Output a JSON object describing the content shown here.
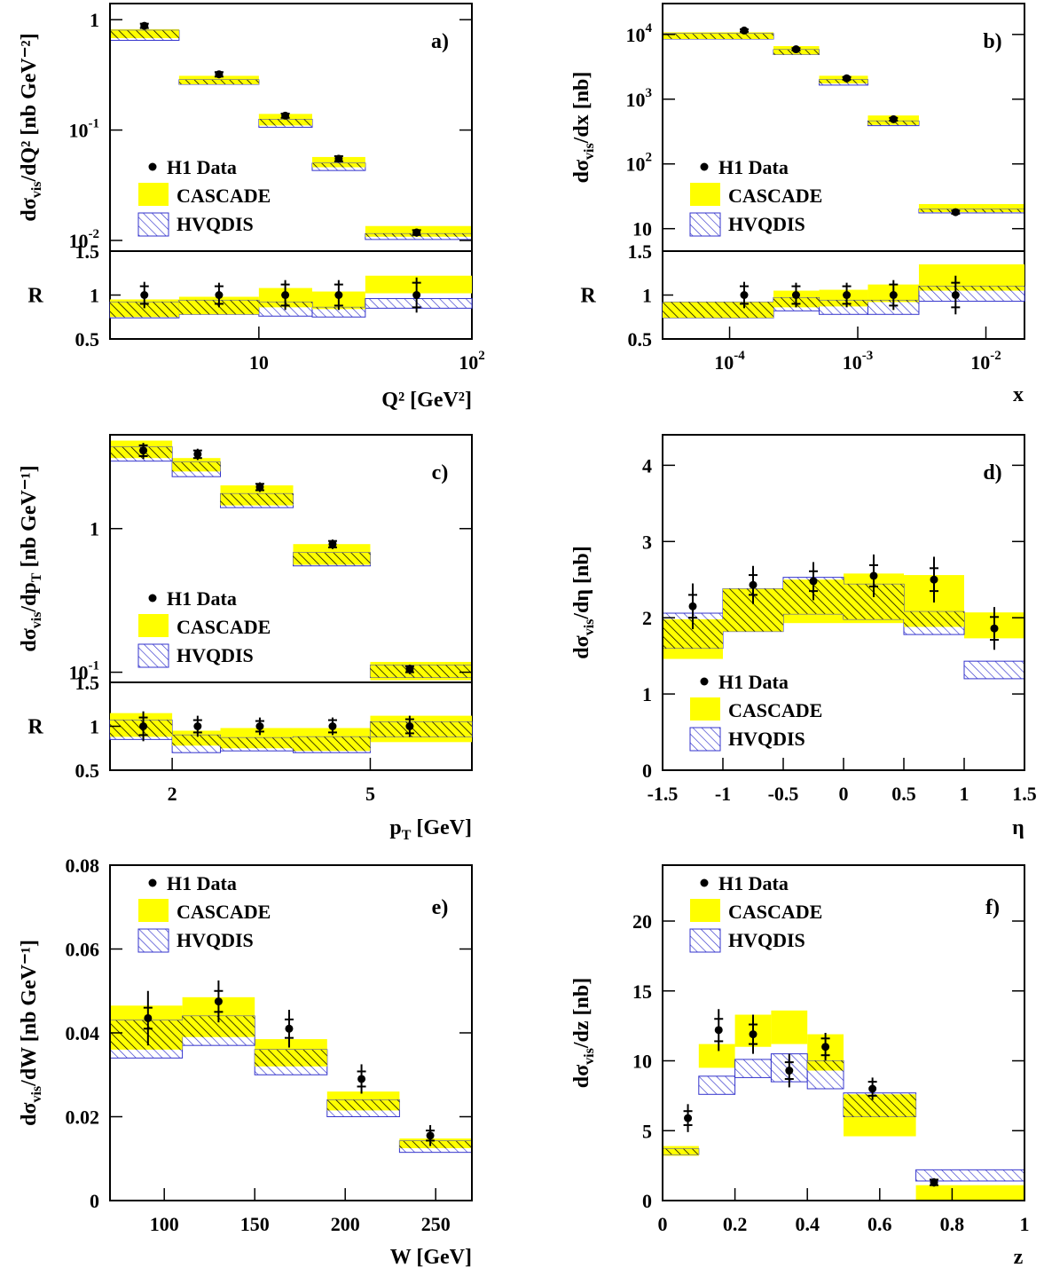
{
  "colors": {
    "cascade": "#ffff00",
    "hvqdis": "#3333cc",
    "data": "#000000"
  },
  "legend_labels": {
    "data": "H1 Data",
    "cascade": "CASCADE",
    "hvqdis": "HVQDIS"
  },
  "chart_data": [
    {
      "id": "a",
      "panel_label": "a)",
      "type": "bar",
      "xscale": "log",
      "yscale": "log",
      "xlim": [
        2,
        100
      ],
      "ylim": [
        0.008,
        1.4
      ],
      "ratio_ylim": [
        0.5,
        1.5
      ],
      "ylabel_main": "dσ",
      "ylabel_sub": "vis",
      "ylabel_rest": "/dQ² [nb GeV⁻²]",
      "xlabel": "Q² [GeV²]",
      "xticks": [
        {
          "v": 10,
          "m": "10"
        },
        {
          "v": 100,
          "m": "10",
          "e": "2"
        }
      ],
      "yticks": [
        {
          "v": 1,
          "m": "1"
        },
        {
          "v": 0.1,
          "m": "10",
          "e": "-1"
        },
        {
          "v": 0.01,
          "m": "10",
          "e": "-2"
        }
      ],
      "ratio_yticks": [
        "1.5",
        "1",
        "0.5"
      ],
      "legend_pos": "lower-left",
      "bins": [
        [
          2,
          4.22
        ],
        [
          4.22,
          10
        ],
        [
          10,
          17.8
        ],
        [
          17.8,
          31.6
        ],
        [
          31.6,
          100
        ]
      ],
      "data": [
        {
          "x": 2.9,
          "y": 0.88,
          "stat": 0.04,
          "tot": 0.07
        },
        {
          "x": 6.5,
          "y": 0.32,
          "stat": 0.015,
          "tot": 0.025
        },
        {
          "x": 13.3,
          "y": 0.135,
          "stat": 0.006,
          "tot": 0.01
        },
        {
          "x": 23.7,
          "y": 0.055,
          "stat": 0.003,
          "tot": 0.004
        },
        {
          "x": 55,
          "y": 0.0118,
          "stat": 0.0006,
          "tot": 0.001
        }
      ],
      "cascade": [
        [
          0.68,
          0.82
        ],
        [
          0.26,
          0.31
        ],
        [
          0.11,
          0.14
        ],
        [
          0.046,
          0.057
        ],
        [
          0.0108,
          0.0135
        ]
      ],
      "hvqdis": [
        [
          0.65,
          0.8
        ],
        [
          0.26,
          0.285
        ],
        [
          0.106,
          0.125
        ],
        [
          0.043,
          0.05
        ],
        [
          0.0102,
          0.0115
        ]
      ],
      "ratio_data": [
        {
          "y": 1,
          "stat": 0.1,
          "tot": 0.15
        },
        {
          "y": 1,
          "stat": 0.1,
          "tot": 0.14
        },
        {
          "y": 1,
          "stat": 0.12,
          "tot": 0.17
        },
        {
          "y": 1,
          "stat": 0.12,
          "tot": 0.17
        },
        {
          "y": 1,
          "stat": 0.14,
          "tot": 0.2
        }
      ],
      "ratio_cascade": [
        [
          0.75,
          0.95
        ],
        [
          0.78,
          0.98
        ],
        [
          0.86,
          1.08
        ],
        [
          0.84,
          1.04
        ],
        [
          1.02,
          1.22
        ]
      ],
      "ratio_hvqdis": [
        [
          0.74,
          0.92
        ],
        [
          0.78,
          0.94
        ],
        [
          0.76,
          0.92
        ],
        [
          0.75,
          0.86
        ],
        [
          0.85,
          0.96
        ]
      ]
    },
    {
      "id": "b",
      "panel_label": "b)",
      "type": "bar",
      "xscale": "log",
      "yscale": "log",
      "xlim": [
        3e-05,
        0.02
      ],
      "ylim": [
        4.5,
        30000
      ],
      "ratio_ylim": [
        0.5,
        1.5
      ],
      "ylabel_main": "dσ",
      "ylabel_sub": "vis",
      "ylabel_rest": "/dx [nb]",
      "xlabel": "x",
      "xticks": [
        {
          "v": 0.0001,
          "m": "10",
          "e": "-4"
        },
        {
          "v": 0.001,
          "m": "10",
          "e": "-3"
        },
        {
          "v": 0.01,
          "m": "10",
          "e": "-2"
        }
      ],
      "yticks": [
        {
          "v": 10000,
          "m": "10",
          "e": "4"
        },
        {
          "v": 1000,
          "m": "10",
          "e": "3"
        },
        {
          "v": 100,
          "m": "10",
          "e": "2"
        },
        {
          "v": 10,
          "m": "10"
        }
      ],
      "ratio_yticks": [
        "1.5",
        "1",
        "0.5"
      ],
      "legend_pos": "lower-left",
      "bins": [
        [
          3e-05,
          0.00022
        ],
        [
          0.00022,
          0.0005
        ],
        [
          0.0005,
          0.0012
        ],
        [
          0.0012,
          0.003
        ],
        [
          0.003,
          0.02
        ]
      ],
      "data": [
        {
          "x": 0.00013,
          "y": 11500,
          "stat": 500,
          "tot": 900
        },
        {
          "x": 0.00033,
          "y": 5900,
          "stat": 250,
          "tot": 450
        },
        {
          "x": 0.00082,
          "y": 2100,
          "stat": 100,
          "tot": 160
        },
        {
          "x": 0.0019,
          "y": 490,
          "stat": 25,
          "tot": 40
        },
        {
          "x": 0.0058,
          "y": 18,
          "stat": 1,
          "tot": 2
        }
      ],
      "cascade": [
        [
          8500,
          10800
        ],
        [
          4900,
          6600
        ],
        [
          1750,
          2300
        ],
        [
          400,
          560
        ],
        [
          18,
          24
        ]
      ],
      "hvqdis": [
        [
          8500,
          10300
        ],
        [
          4900,
          5800
        ],
        [
          1650,
          2000
        ],
        [
          390,
          460
        ],
        [
          17.5,
          20
        ]
      ],
      "ratio_data": [
        {
          "y": 1,
          "stat": 0.1,
          "tot": 0.15
        },
        {
          "y": 1,
          "stat": 0.1,
          "tot": 0.14
        },
        {
          "y": 1,
          "stat": 0.1,
          "tot": 0.14
        },
        {
          "y": 1,
          "stat": 0.12,
          "tot": 0.17
        },
        {
          "y": 1,
          "stat": 0.14,
          "tot": 0.22
        }
      ],
      "ratio_cascade": [
        [
          0.74,
          0.92
        ],
        [
          0.86,
          1.05
        ],
        [
          0.87,
          1.06
        ],
        [
          0.92,
          1.12
        ],
        [
          1.05,
          1.35
        ]
      ],
      "ratio_hvqdis": [
        [
          0.74,
          0.92
        ],
        [
          0.82,
          0.97
        ],
        [
          0.78,
          0.94
        ],
        [
          0.78,
          0.94
        ],
        [
          0.93,
          1.1
        ]
      ]
    },
    {
      "id": "c",
      "panel_label": "c)",
      "type": "bar",
      "xscale": "log",
      "yscale": "log",
      "xlim": [
        1.5,
        8
      ],
      "ylim": [
        0.085,
        4.5
      ],
      "ratio_ylim": [
        0.5,
        1.5
      ],
      "ylabel_main": "dσ",
      "ylabel_sub": "vis",
      "ylabel_rest": "/dp",
      "ylabel_sub2": "T",
      "ylabel_rest2": " [nb GeV⁻¹]",
      "xlabel_main": "p",
      "xlabel_sub": "T",
      "xlabel_rest": " [GeV]",
      "xticks": [
        {
          "v": 2,
          "m": "2"
        },
        {
          "v": 5,
          "m": "5"
        }
      ],
      "yticks": [
        {
          "v": 1,
          "m": "1"
        },
        {
          "v": 0.1,
          "m": "10",
          "e": "-1"
        }
      ],
      "ratio_yticks": [
        "1.5",
        "1",
        "0.5"
      ],
      "legend_pos": "lower-left",
      "bins": [
        [
          1.5,
          2.0
        ],
        [
          2.0,
          2.5
        ],
        [
          2.5,
          3.5
        ],
        [
          3.5,
          5.0
        ],
        [
          5.0,
          8.0
        ]
      ],
      "data": [
        {
          "x": 1.75,
          "y": 3.5,
          "stat": 0.3,
          "tot": 0.45
        },
        {
          "x": 2.25,
          "y": 3.3,
          "stat": 0.2,
          "tot": 0.3
        },
        {
          "x": 3.0,
          "y": 1.95,
          "stat": 0.1,
          "tot": 0.15
        },
        {
          "x": 4.2,
          "y": 0.78,
          "stat": 0.04,
          "tot": 0.06
        },
        {
          "x": 6.0,
          "y": 0.105,
          "stat": 0.005,
          "tot": 0.008
        }
      ],
      "cascade": [
        [
          3.1,
          4.1
        ],
        [
          2.5,
          3.1
        ],
        [
          1.45,
          2.0
        ],
        [
          0.56,
          0.78
        ],
        [
          0.088,
          0.118
        ]
      ],
      "hvqdis": [
        [
          2.95,
          3.7
        ],
        [
          2.3,
          2.9
        ],
        [
          1.4,
          1.75
        ],
        [
          0.55,
          0.68
        ],
        [
          0.092,
          0.112
        ]
      ],
      "ratio_data": [
        {
          "y": 1,
          "stat": 0.1,
          "tot": 0.17
        },
        {
          "y": 1,
          "stat": 0.07,
          "tot": 0.12
        },
        {
          "y": 1,
          "stat": 0.06,
          "tot": 0.1
        },
        {
          "y": 1,
          "stat": 0.07,
          "tot": 0.1
        },
        {
          "y": 1,
          "stat": 0.08,
          "tot": 0.12
        }
      ],
      "ratio_cascade": [
        [
          0.88,
          1.15
        ],
        [
          0.78,
          0.95
        ],
        [
          0.75,
          0.98
        ],
        [
          0.72,
          0.98
        ],
        [
          0.82,
          1.12
        ]
      ],
      "ratio_hvqdis": [
        [
          0.85,
          1.07
        ],
        [
          0.7,
          0.9
        ],
        [
          0.72,
          0.87
        ],
        [
          0.7,
          0.88
        ],
        [
          0.88,
          1.05
        ]
      ]
    },
    {
      "id": "d",
      "panel_label": "d)",
      "type": "bar",
      "xscale": "linear",
      "yscale": "linear",
      "xlim": [
        -1.5,
        1.5
      ],
      "ylim": [
        0,
        4.4
      ],
      "ylabel_main": "dσ",
      "ylabel_sub": "vis",
      "ylabel_rest": "/dη [nb]",
      "xlabel": "η",
      "xticks": [
        {
          "v": -1.5,
          "m": "-1.5"
        },
        {
          "v": -1,
          "m": "-1"
        },
        {
          "v": -0.5,
          "m": "-0.5"
        },
        {
          "v": 0,
          "m": "0"
        },
        {
          "v": 0.5,
          "m": "0.5"
        },
        {
          "v": 1,
          "m": "1"
        },
        {
          "v": 1.5,
          "m": "1.5"
        }
      ],
      "yticks": [
        {
          "v": 0,
          "m": "0"
        },
        {
          "v": 1,
          "m": "1"
        },
        {
          "v": 2,
          "m": "2"
        },
        {
          "v": 3,
          "m": "3"
        },
        {
          "v": 4,
          "m": "4"
        }
      ],
      "legend_pos": "lower-left",
      "bins": [
        [
          -1.5,
          -1.0
        ],
        [
          -1.0,
          -0.5
        ],
        [
          -0.5,
          0.0
        ],
        [
          0.0,
          0.5
        ],
        [
          0.5,
          1.0
        ],
        [
          1.0,
          1.5
        ]
      ],
      "data": [
        {
          "x": -1.25,
          "y": 2.15,
          "stat": 0.15,
          "tot": 0.3
        },
        {
          "x": -0.75,
          "y": 2.43,
          "stat": 0.13,
          "tot": 0.25
        },
        {
          "x": -0.25,
          "y": 2.48,
          "stat": 0.13,
          "tot": 0.25
        },
        {
          "x": 0.25,
          "y": 2.55,
          "stat": 0.14,
          "tot": 0.28
        },
        {
          "x": 0.75,
          "y": 2.5,
          "stat": 0.15,
          "tot": 0.3
        },
        {
          "x": 1.25,
          "y": 1.86,
          "stat": 0.15,
          "tot": 0.28
        }
      ],
      "cascade": [
        [
          1.46,
          1.98
        ],
        [
          1.82,
          2.38
        ],
        [
          1.93,
          2.5
        ],
        [
          1.93,
          2.58
        ],
        [
          1.88,
          2.56
        ],
        [
          1.73,
          2.07
        ]
      ],
      "hvqdis": [
        [
          1.6,
          2.06
        ],
        [
          1.82,
          2.38
        ],
        [
          2.05,
          2.53
        ],
        [
          1.98,
          2.44
        ],
        [
          1.78,
          2.08
        ],
        [
          1.2,
          1.43
        ]
      ]
    },
    {
      "id": "e",
      "panel_label": "e)",
      "type": "bar",
      "xscale": "linear",
      "yscale": "linear",
      "xlim": [
        70,
        270
      ],
      "ylim": [
        0,
        0.08
      ],
      "ylabel_main": "dσ",
      "ylabel_sub": "vis",
      "ylabel_rest": "/dW [nb GeV⁻¹]",
      "xlabel": "W [GeV]",
      "xticks": [
        {
          "v": 100,
          "m": "100"
        },
        {
          "v": 150,
          "m": "150"
        },
        {
          "v": 200,
          "m": "200"
        },
        {
          "v": 250,
          "m": "250"
        }
      ],
      "yticks": [
        {
          "v": 0,
          "m": "0"
        },
        {
          "v": 0.02,
          "m": "0.02"
        },
        {
          "v": 0.04,
          "m": "0.04"
        },
        {
          "v": 0.06,
          "m": "0.06"
        },
        {
          "v": 0.08,
          "m": "0.08"
        }
      ],
      "legend_pos": "top-left",
      "bins": [
        [
          70,
          110
        ],
        [
          110,
          150
        ],
        [
          150,
          190
        ],
        [
          190,
          230
        ],
        [
          230,
          270
        ]
      ],
      "data": [
        {
          "x": 91,
          "y": 0.0435,
          "stat": 0.0025,
          "tot": 0.0065
        },
        {
          "x": 130,
          "y": 0.0475,
          "stat": 0.0025,
          "tot": 0.005
        },
        {
          "x": 169,
          "y": 0.041,
          "stat": 0.0022,
          "tot": 0.0045
        },
        {
          "x": 209,
          "y": 0.029,
          "stat": 0.0018,
          "tot": 0.0035
        },
        {
          "x": 247,
          "y": 0.0155,
          "stat": 0.0012,
          "tot": 0.0025
        }
      ],
      "cascade": [
        [
          0.036,
          0.0465
        ],
        [
          0.039,
          0.0485
        ],
        [
          0.032,
          0.0385
        ],
        [
          0.0215,
          0.026
        ],
        [
          0.0125,
          0.0148
        ]
      ],
      "hvqdis": [
        [
          0.034,
          0.043
        ],
        [
          0.037,
          0.044
        ],
        [
          0.03,
          0.036
        ],
        [
          0.02,
          0.024
        ],
        [
          0.0115,
          0.0142
        ]
      ]
    },
    {
      "id": "f",
      "panel_label": "f)",
      "type": "bar",
      "xscale": "linear",
      "yscale": "linear",
      "xlim": [
        0,
        1
      ],
      "ylim": [
        0,
        24
      ],
      "ylabel_main": "dσ",
      "ylabel_sub": "vis",
      "ylabel_rest": "/dz [nb]",
      "xlabel": "z",
      "xticks": [
        {
          "v": 0,
          "m": "0"
        },
        {
          "v": 0.2,
          "m": "0.2"
        },
        {
          "v": 0.4,
          "m": "0.4"
        },
        {
          "v": 0.6,
          "m": "0.6"
        },
        {
          "v": 0.8,
          "m": "0.8"
        },
        {
          "v": 1,
          "m": "1"
        }
      ],
      "yticks": [
        {
          "v": 0,
          "m": "0"
        },
        {
          "v": 5,
          "m": "5"
        },
        {
          "v": 10,
          "m": "10"
        },
        {
          "v": 15,
          "m": "15"
        },
        {
          "v": 20,
          "m": "20"
        }
      ],
      "legend_pos": "top-left",
      "bins": [
        [
          0.0,
          0.1
        ],
        [
          0.1,
          0.2
        ],
        [
          0.2,
          0.3
        ],
        [
          0.3,
          0.4
        ],
        [
          0.4,
          0.5
        ],
        [
          0.5,
          0.7
        ],
        [
          0.7,
          1.0
        ]
      ],
      "data": [
        {
          "x": 0.07,
          "y": 5.9,
          "stat": 0.5,
          "tot": 1.0
        },
        {
          "x": 0.155,
          "y": 12.2,
          "stat": 0.8,
          "tot": 1.5
        },
        {
          "x": 0.25,
          "y": 11.9,
          "stat": 0.7,
          "tot": 1.4
        },
        {
          "x": 0.35,
          "y": 9.3,
          "stat": 0.6,
          "tot": 1.2
        },
        {
          "x": 0.45,
          "y": 11.0,
          "stat": 0.6,
          "tot": 1.0
        },
        {
          "x": 0.58,
          "y": 8.0,
          "stat": 0.5,
          "tot": 0.8
        },
        {
          "x": 0.75,
          "y": 1.3,
          "stat": 0.2,
          "tot": 0.3
        }
      ],
      "cascade": [
        [
          3.2,
          3.9
        ],
        [
          9.5,
          11.2
        ],
        [
          11.0,
          13.3
        ],
        [
          11.2,
          13.6
        ],
        [
          9.3,
          11.9
        ],
        [
          4.6,
          7.6
        ],
        [
          0.0,
          1.1
        ]
      ],
      "hvqdis": [
        [
          3.3,
          3.7
        ],
        [
          7.6,
          8.9
        ],
        [
          8.8,
          10.1
        ],
        [
          8.5,
          10.5
        ],
        [
          8.0,
          10.0
        ],
        [
          6.0,
          7.7
        ],
        [
          1.4,
          2.2
        ]
      ]
    }
  ]
}
